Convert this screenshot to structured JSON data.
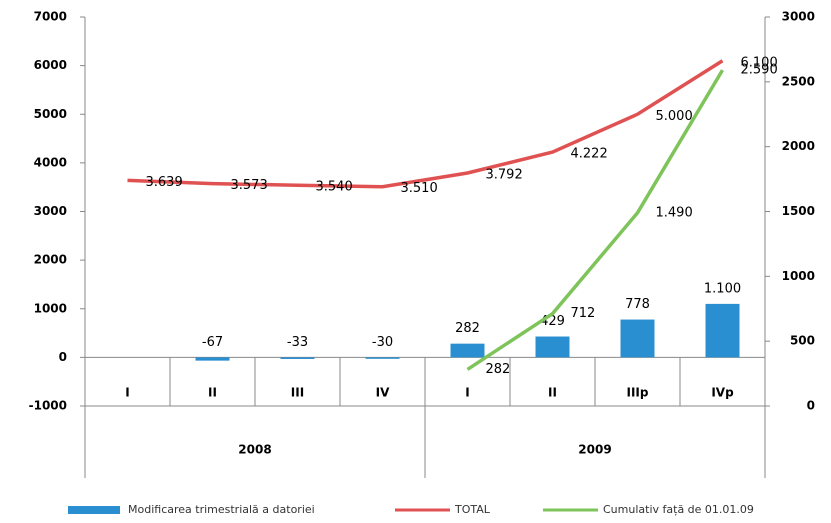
{
  "chart_data": {
    "type": "bar",
    "categories": [
      "I",
      "II",
      "III",
      "IV",
      "I",
      "II",
      "IIIp",
      "IVp"
    ],
    "groups": [
      {
        "label": "2008",
        "span": 4
      },
      {
        "label": "2009",
        "span": 4
      }
    ],
    "ylim": [
      -1000,
      7000
    ],
    "yticks": [
      -1000,
      0,
      1000,
      2000,
      3000,
      4000,
      5000,
      6000,
      7000
    ],
    "y2lim": [
      0,
      3000
    ],
    "y2ticks": [
      0,
      500,
      1000,
      1500,
      2000,
      2500,
      3000
    ],
    "series": [
      {
        "name": "Modificarea trimestrială a datoriei",
        "type": "bar",
        "color": "#2a8fd0",
        "values": [
          null,
          -67,
          -33,
          -30,
          282,
          429,
          778,
          1100
        ],
        "value_labels": [
          null,
          "-67",
          "-33",
          "-30",
          "282",
          "429",
          "778",
          "1.100"
        ]
      },
      {
        "name": "TOTAL",
        "type": "line",
        "color": "#e05252",
        "values": [
          3639,
          3573,
          3540,
          3510,
          3792,
          4222,
          5000,
          6100
        ],
        "value_labels": [
          "3.639",
          "3.573",
          "3.540",
          "3.510",
          "3.792",
          "4.222",
          "5.000",
          "6.100"
        ]
      },
      {
        "name": "Cumulativ față de 01.01.09",
        "type": "line",
        "axis": "y2",
        "color": "#7ec45a",
        "values": [
          null,
          null,
          null,
          null,
          282,
          712,
          1490,
          2590
        ],
        "value_labels": [
          null,
          null,
          null,
          null,
          "282",
          "712",
          "1.490",
          "2.590"
        ]
      }
    ]
  }
}
